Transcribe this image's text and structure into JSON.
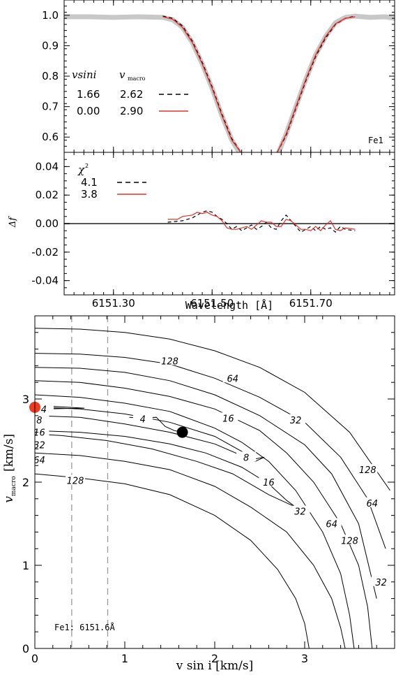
{
  "chart_data": [
    {
      "type": "line",
      "panel": "line-profile",
      "xlim": [
        6151.2,
        6151.87
      ],
      "ylim": [
        0.55,
        1.05
      ],
      "yticks": [
        "0.6",
        "0.7",
        "0.8",
        "0.9",
        "1.0"
      ],
      "ytick_values": [
        0.6,
        0.7,
        0.8,
        0.9,
        1.0
      ],
      "label": "Fe1",
      "legend": {
        "header_vsini": "vsini",
        "header_vmacro": "v",
        "header_vmacro_sub": "macro",
        "rows": [
          {
            "vsini": "1.66",
            "vmacro": "2.62",
            "style": "dashed",
            "color": "#000000"
          },
          {
            "vsini": "0.00",
            "vmacro": "2.90",
            "style": "solid",
            "color": "#e8312a"
          }
        ]
      },
      "series": [
        {
          "role": "observed",
          "color": "#c8c8c8",
          "x": [
            6151.2,
            6151.25,
            6151.3,
            6151.35,
            6151.4,
            6151.42,
            6151.44,
            6151.46,
            6151.48,
            6151.5,
            6151.52,
            6151.54,
            6151.555,
            6151.565
          ],
          "y": [
            0.995,
            0.995,
            0.993,
            0.995,
            0.993,
            0.985,
            0.96,
            0.91,
            0.84,
            0.76,
            0.67,
            0.59,
            0.55,
            0.53
          ]
        },
        {
          "role": "observed",
          "color": "#c8c8c8",
          "x": [
            6151.625,
            6151.635,
            6151.65,
            6151.67,
            6151.69,
            6151.71,
            6151.73,
            6151.75,
            6151.77,
            6151.79,
            6151.82,
            6151.85,
            6151.87
          ],
          "y": [
            0.53,
            0.55,
            0.61,
            0.7,
            0.79,
            0.87,
            0.93,
            0.975,
            0.993,
            0.997,
            0.993,
            0.995,
            0.99
          ]
        },
        {
          "role": "model",
          "style": "dashed",
          "color": "#000000",
          "x": [
            6151.4,
            6151.42,
            6151.44,
            6151.46,
            6151.48,
            6151.5,
            6151.52,
            6151.54,
            6151.558
          ],
          "y": [
            0.997,
            0.99,
            0.965,
            0.915,
            0.845,
            0.765,
            0.675,
            0.595,
            0.55
          ]
        },
        {
          "role": "model",
          "style": "dashed",
          "color": "#000000",
          "x": [
            6151.632,
            6151.65,
            6151.67,
            6151.69,
            6151.71,
            6151.73,
            6151.75,
            6151.77,
            6151.79
          ],
          "y": [
            0.55,
            0.605,
            0.695,
            0.785,
            0.865,
            0.925,
            0.97,
            0.99,
            0.997
          ]
        },
        {
          "role": "model",
          "style": "solid",
          "color": "#e8312a",
          "x": [
            6151.4,
            6151.42,
            6151.44,
            6151.46,
            6151.48,
            6151.5,
            6151.52,
            6151.54,
            6151.558
          ],
          "y": [
            0.995,
            0.987,
            0.96,
            0.91,
            0.84,
            0.76,
            0.67,
            0.59,
            0.55
          ]
        },
        {
          "role": "model",
          "style": "solid",
          "color": "#e8312a",
          "x": [
            6151.632,
            6151.65,
            6151.67,
            6151.69,
            6151.71,
            6151.73,
            6151.75,
            6151.77,
            6151.79
          ],
          "y": [
            0.55,
            0.61,
            0.7,
            0.79,
            0.87,
            0.93,
            0.972,
            0.99,
            0.995
          ]
        }
      ]
    },
    {
      "type": "line",
      "panel": "residuals",
      "xlim": [
        6151.2,
        6151.87
      ],
      "ylim": [
        -0.05,
        0.05
      ],
      "xticks": [
        "6151.30",
        "6151.50",
        "6151.70"
      ],
      "xtick_values": [
        6151.3,
        6151.5,
        6151.7
      ],
      "yticks": [
        "-0.04",
        "-0.02",
        "0.00",
        "0.02",
        "0.04"
      ],
      "ytick_values": [
        -0.04,
        -0.02,
        0.0,
        0.02,
        0.04
      ],
      "ylabel": "Δf",
      "xlabel": "Wavelength [Å]",
      "legend": {
        "header": "χ",
        "header_sup": "2",
        "rows": [
          {
            "value": "4.1",
            "style": "dashed",
            "color": "#000000"
          },
          {
            "value": "3.8",
            "style": "solid",
            "color": "#e8312a"
          }
        ]
      },
      "series": [
        {
          "style": "dashed",
          "color": "#000000",
          "x": [
            6151.41,
            6151.44,
            6151.46,
            6151.48,
            6151.49,
            6151.5,
            6151.51,
            6151.52,
            6151.53,
            6151.54,
            6151.55,
            6151.56,
            6151.57,
            6151.58,
            6151.59,
            6151.6,
            6151.61,
            6151.62,
            6151.63,
            6151.64,
            6151.65,
            6151.66,
            6151.67,
            6151.68,
            6151.69,
            6151.7,
            6151.71,
            6151.72,
            6151.73,
            6151.74,
            6151.75,
            6151.76,
            6151.77,
            6151.79
          ],
          "y": [
            0.001,
            0.002,
            0.004,
            0.008,
            0.009,
            0.008,
            0.005,
            0.003,
            0.0,
            -0.004,
            -0.002,
            -0.005,
            -0.003,
            -0.001,
            -0.004,
            -0.002,
            0.001,
            -0.003,
            -0.004,
            0.002,
            0.006,
            0.002,
            -0.002,
            -0.006,
            -0.004,
            -0.002,
            -0.005,
            -0.002,
            -0.004,
            -0.003,
            -0.006,
            -0.002,
            -0.004,
            -0.005
          ]
        },
        {
          "style": "solid",
          "color": "#e8312a",
          "x": [
            6151.41,
            6151.43,
            6151.44,
            6151.46,
            6151.47,
            6151.48,
            6151.49,
            6151.5,
            6151.51,
            6151.52,
            6151.53,
            6151.54,
            6151.55,
            6151.57,
            6151.58,
            6151.59,
            6151.6,
            6151.61,
            6151.62,
            6151.63,
            6151.64,
            6151.65,
            6151.66,
            6151.67,
            6151.68,
            6151.69,
            6151.7,
            6151.71,
            6151.72,
            6151.73,
            6151.74,
            6151.75,
            6151.76,
            6151.77,
            6151.79
          ],
          "y": [
            0.003,
            0.003,
            0.005,
            0.006,
            0.008,
            0.007,
            0.008,
            0.006,
            0.005,
            0.002,
            -0.003,
            -0.004,
            -0.004,
            -0.002,
            -0.004,
            -0.001,
            0.002,
            0.001,
            0.001,
            -0.002,
            -0.002,
            0.003,
            0.002,
            -0.001,
            -0.004,
            -0.004,
            -0.005,
            -0.002,
            -0.005,
            -0.001,
            0.002,
            -0.004,
            -0.005,
            -0.003,
            -0.004
          ]
        }
      ]
    },
    {
      "type": "contour",
      "panel": "chi2-map",
      "xlim": [
        0,
        4
      ],
      "ylim": [
        0,
        4
      ],
      "xticks": [
        "0",
        "1",
        "2",
        "3"
      ],
      "xtick_values": [
        0,
        1,
        2,
        3
      ],
      "yticks": [
        "0",
        "1",
        "2",
        "3"
      ],
      "ytick_values": [
        0,
        1,
        2,
        3
      ],
      "xlabel": "v sin i [km/s]",
      "ylabel_main": "v",
      "ylabel_sub": "macro",
      "ylabel_units": "[km/s]",
      "annotation": "Fe1: 6151.6Å",
      "vlines": [
        0.41,
        0.81
      ],
      "markers": [
        {
          "vsini": 0.0,
          "vmacro": 2.9,
          "color": "#f03a1e"
        },
        {
          "vsini": 1.64,
          "vmacro": 2.6,
          "color": "#000000"
        }
      ],
      "contour_labels": [
        {
          "text": "128",
          "at": [
            1.5,
            3.46
          ]
        },
        {
          "text": "64",
          "at": [
            2.2,
            3.25
          ]
        },
        {
          "text": "32",
          "at": [
            2.9,
            2.75
          ]
        },
        {
          "text": "16",
          "at": [
            2.15,
            2.77
          ]
        },
        {
          "text": "8",
          "at": [
            0.05,
            2.75
          ]
        },
        {
          "text": "4",
          "at": [
            0.1,
            2.88
          ]
        },
        {
          "text": "4",
          "at": [
            1.2,
            2.76
          ]
        },
        {
          "text": "16",
          "at": [
            0.05,
            2.6
          ]
        },
        {
          "text": "8",
          "at": [
            2.35,
            2.3
          ]
        },
        {
          "text": "32",
          "at": [
            0.05,
            2.45
          ]
        },
        {
          "text": "64",
          "at": [
            0.05,
            2.27
          ]
        },
        {
          "text": "16",
          "at": [
            2.6,
            2.0
          ]
        },
        {
          "text": "128",
          "at": [
            0.45,
            2.02
          ]
        },
        {
          "text": "32",
          "at": [
            2.95,
            1.65
          ]
        },
        {
          "text": "64",
          "at": [
            3.3,
            1.5
          ]
        },
        {
          "text": "128",
          "at": [
            3.7,
            2.15
          ]
        },
        {
          "text": "64",
          "at": [
            3.75,
            1.75
          ]
        },
        {
          "text": "128",
          "at": [
            3.5,
            1.3
          ]
        },
        {
          "text": "32",
          "at": [
            3.85,
            0.8
          ]
        }
      ],
      "contours": [
        {
          "x": [
            0,
            0.5,
            1.0,
            1.5,
            2.0,
            2.5,
            3.0,
            3.5,
            3.95
          ],
          "y": [
            3.85,
            3.84,
            3.8,
            3.72,
            3.58,
            3.38,
            3.08,
            2.6,
            1.9
          ]
        },
        {
          "x": [
            0,
            0.5,
            1.0,
            1.5,
            2.0,
            2.5,
            3.0,
            3.4,
            3.7,
            3.9
          ],
          "y": [
            3.55,
            3.54,
            3.5,
            3.42,
            3.25,
            3.02,
            2.72,
            2.3,
            1.8,
            1.2
          ]
        },
        {
          "x": [
            0,
            0.5,
            1.0,
            1.5,
            2.0,
            2.5,
            3.0,
            3.3,
            3.6,
            3.8
          ],
          "y": [
            3.38,
            3.37,
            3.32,
            3.22,
            3.05,
            2.8,
            2.45,
            2.1,
            1.5,
            0.6
          ]
        },
        {
          "x": [
            0,
            0.5,
            1.0,
            1.5,
            2.0,
            2.5,
            2.8,
            3.1,
            3.4,
            3.6,
            3.7,
            3.75
          ],
          "y": [
            3.22,
            3.2,
            3.13,
            3.03,
            2.88,
            2.62,
            2.35,
            2.0,
            1.5,
            1.0,
            0.5,
            0.0
          ]
        },
        {
          "x": [
            0,
            0.5,
            1.0,
            1.5,
            2.0,
            2.3,
            2.6,
            2.9,
            3.2,
            3.4,
            3.5,
            3.55
          ],
          "y": [
            3.05,
            3.02,
            2.95,
            2.85,
            2.65,
            2.48,
            2.25,
            1.9,
            1.4,
            0.9,
            0.4,
            0.0
          ]
        },
        {
          "x": [
            0.05,
            0.5,
            1.0,
            1.5,
            2.0,
            2.45,
            2.55,
            2.45,
            2.0,
            1.5,
            1.0,
            0.5,
            0.0
          ],
          "y": [
            2.9,
            2.88,
            2.82,
            2.72,
            2.55,
            2.28,
            2.3,
            2.25,
            2.46,
            2.6,
            2.7,
            2.78,
            2.8
          ]
        },
        {
          "x": [
            0,
            0.5,
            1.0,
            1.5,
            1.9,
            2.3,
            2.6,
            2.8,
            2.9,
            2.6,
            2.2,
            1.8,
            1.3,
            0.8,
            0.3,
            0.0
          ],
          "y": [
            2.62,
            2.6,
            2.55,
            2.46,
            2.35,
            2.18,
            1.98,
            1.78,
            1.7,
            1.85,
            2.1,
            2.25,
            2.4,
            2.5,
            2.56,
            2.58
          ]
        },
        {
          "x": [
            0,
            0.5,
            1.0,
            1.5,
            2.0,
            2.4,
            2.8,
            3.1,
            3.3,
            3.4,
            3.45
          ],
          "y": [
            2.35,
            2.32,
            2.25,
            2.15,
            1.95,
            1.7,
            1.4,
            1.0,
            0.6,
            0.25,
            0.0
          ]
        },
        {
          "x": [
            0,
            0.5,
            1.0,
            1.5,
            2.0,
            2.4,
            2.7,
            2.9,
            3.0,
            3.05
          ],
          "y": [
            2.1,
            2.05,
            1.98,
            1.85,
            1.6,
            1.3,
            0.95,
            0.6,
            0.3,
            0.0
          ]
        },
        {
          "x": [
            1.05,
            1.2,
            1.35,
            1.45,
            1.55,
            1.64
          ],
          "y": [
            2.78,
            2.77,
            2.78,
            2.67,
            2.62,
            2.6
          ]
        },
        {
          "x": [
            0.05,
            0.55,
            0.1
          ],
          "y": [
            2.92,
            2.89,
            2.88
          ]
        }
      ]
    }
  ]
}
